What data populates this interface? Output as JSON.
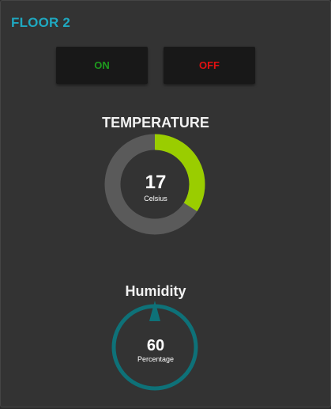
{
  "panel": {
    "title": "FLOOR 2",
    "title_color": "#1fa8c0"
  },
  "controls": {
    "on_label": "ON",
    "on_color": "#1e9a1e",
    "off_label": "OFF",
    "off_color": "#e01010"
  },
  "temperature": {
    "title": "TEMPERATURE",
    "value": 17,
    "min": 0,
    "max": 50,
    "unit": "Celsius",
    "fill_color": "#9acd00",
    "track_color": "#5a5a5a"
  },
  "humidity": {
    "title": "Humidity",
    "value": 60,
    "unit": "Percentage",
    "ring_color": "#0e7178"
  }
}
